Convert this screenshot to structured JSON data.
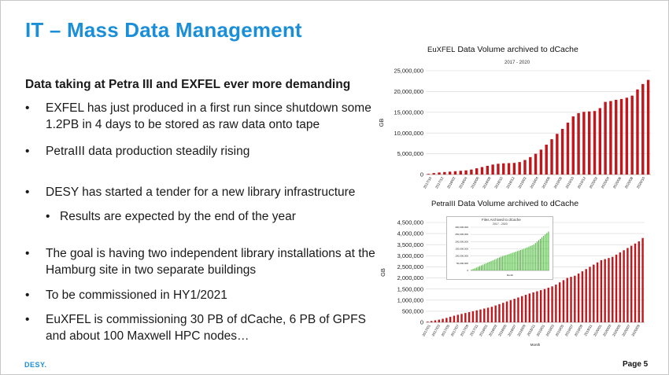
{
  "slide": {
    "title": "IT – Mass Data Management",
    "subhead": "Data taking at Petra III and EXFEL ever more demanding",
    "bullets": [
      {
        "text": "EXFEL has just produced in a first run since shutdown some 1.2PB in 4 days to be stored as raw data onto tape",
        "level": 1
      },
      {
        "text": "PetraIII data production steadily rising",
        "level": 1
      },
      {
        "text": "DESY has started a tender for a new library infrastructure",
        "level": 1
      },
      {
        "text": "Results are expected by the end of the year",
        "level": 2
      },
      {
        "text": "The goal is having two independent library installations at the Hamburg site in two separate buildings",
        "level": 1
      },
      {
        "text": "To be commissioned in HY1/2021",
        "level": 1
      },
      {
        "text": "EuXFEL is commissioning 30 PB of dCache, 6 PB of GPFS and about 100 Maxwell HPC nodes…",
        "level": 1
      }
    ],
    "bullet_symbol": "•",
    "footer_logo": "DESY.",
    "page_label": "Page 5",
    "colors": {
      "title": "#1a8fd8",
      "bars": "#c0171c",
      "inset_bars": "#3cb728"
    }
  },
  "chart_data": [
    {
      "type": "bar",
      "title_prefix": "EuXFEL",
      "title": "Data Volume archived to dCache",
      "subtitle": "2017 - 2020",
      "ylabel": "GB",
      "ylim": [
        0,
        25000000
      ],
      "yticks": [
        0,
        5000000,
        10000000,
        15000000,
        20000000,
        25000000
      ],
      "ytick_labels": [
        "0",
        "5,000,000",
        "10,000,000",
        "15,000,000",
        "20,000,000",
        "25,000,000"
      ],
      "xtick_labels": [
        "2017/10",
        "2017/12",
        "2018/02",
        "2018/04",
        "2018/06",
        "2018/08",
        "2018/10",
        "2018/12",
        "2019/02",
        "2019/04",
        "2019/06",
        "2019/08",
        "2019/10",
        "2019/12",
        "2020/02",
        "2020/04",
        "2020/06",
        "2020/08",
        "2020/10"
      ],
      "grid": true,
      "values": [
        150000,
        350000,
        500000,
        600000,
        700000,
        800000,
        900000,
        1000000,
        1200000,
        1500000,
        1800000,
        2100000,
        2400000,
        2600000,
        2700000,
        2750000,
        2800000,
        3000000,
        3500000,
        4200000,
        5000000,
        6000000,
        7200000,
        8500000,
        9800000,
        11000000,
        12500000,
        14000000,
        14800000,
        15100000,
        15200000,
        15300000,
        16000000,
        17500000,
        17700000,
        18000000,
        18200000,
        18500000,
        19000000,
        20500000,
        21800000,
        22800000
      ]
    },
    {
      "type": "bar",
      "title_prefix": "PetraIII",
      "title": "Data Volume archived to dCache",
      "xlabel": "Month",
      "ylabel": "GB",
      "ylim": [
        0,
        4500000
      ],
      "yticks": [
        0,
        500000,
        1000000,
        1500000,
        2000000,
        2500000,
        3000000,
        3500000,
        4000000,
        4500000
      ],
      "ytick_labels": [
        "0",
        "500,000",
        "1,000,000",
        "1,500,000",
        "2,000,000",
        "2,500,000",
        "3,000,000",
        "3,500,000",
        "4,000,000",
        "4,500,000"
      ],
      "xtick_labels": [
        "2017/01",
        "2017/03",
        "2017/05",
        "2017/07",
        "2017/09",
        "2017/11",
        "2018/01",
        "2018/03",
        "2018/05",
        "2018/07",
        "2018/09",
        "2018/11",
        "2019/01",
        "2019/03",
        "2019/05",
        "2019/07",
        "2019/09",
        "2019/11",
        "2020/01",
        "2020/03",
        "2020/05",
        "2020/07",
        "2020/09"
      ],
      "grid": true,
      "values": [
        30000,
        60000,
        90000,
        120000,
        160000,
        200000,
        250000,
        300000,
        340000,
        380000,
        420000,
        460000,
        500000,
        540000,
        580000,
        620000,
        660000,
        700000,
        760000,
        820000,
        880000,
        940000,
        1000000,
        1060000,
        1120000,
        1180000,
        1240000,
        1300000,
        1350000,
        1400000,
        1450000,
        1500000,
        1560000,
        1620000,
        1700000,
        1800000,
        1900000,
        2000000,
        2050000,
        2100000,
        2200000,
        2300000,
        2400000,
        2500000,
        2600000,
        2700000,
        2800000,
        2850000,
        2900000,
        2950000,
        3050000,
        3150000,
        3250000,
        3350000,
        3450000,
        3550000,
        3650000,
        3800000
      ]
    },
    {
      "type": "bar",
      "title": "Files Archived to dCache",
      "subtitle": "2017 - 2020",
      "xlabel": "Month",
      "ylim": [
        0,
        300000000
      ],
      "yticks": [
        0,
        50000000,
        100000000,
        150000000,
        200000000,
        250000000,
        300000000
      ],
      "ytick_labels": [
        "0",
        "50,000,000",
        "100,000,000",
        "150,000,000",
        "200,000,000",
        "250,000,000",
        "300,000,000"
      ],
      "values": [
        5000000,
        10000000,
        15000000,
        20000000,
        25000000,
        30000000,
        35000000,
        40000000,
        45000000,
        50000000,
        55000000,
        60000000,
        65000000,
        70000000,
        75000000,
        80000000,
        85000000,
        90000000,
        95000000,
        100000000,
        103000000,
        106000000,
        110000000,
        114000000,
        118000000,
        122000000,
        126000000,
        130000000,
        134000000,
        138000000,
        142000000,
        146000000,
        150000000,
        155000000,
        160000000,
        165000000,
        170000000,
        175000000,
        180000000,
        190000000,
        200000000,
        210000000,
        220000000,
        230000000,
        240000000,
        250000000,
        260000000,
        270000000
      ]
    }
  ]
}
